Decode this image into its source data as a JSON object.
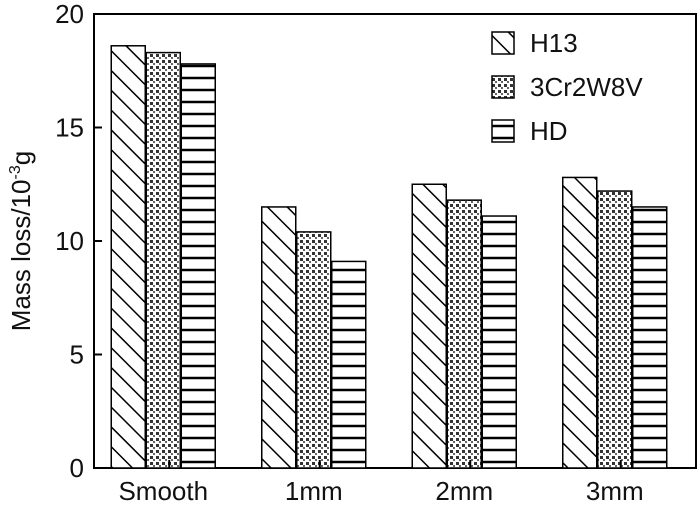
{
  "chart_data": {
    "type": "bar",
    "title": "",
    "xlabel": "",
    "ylabel": "Mass loss/10",
    "ylabel_sup": "-3",
    "ylabel_suffix": "g",
    "categories": [
      "Smooth",
      "1mm",
      "2mm",
      "3mm"
    ],
    "ylim": [
      0,
      20
    ],
    "yticks": [
      0,
      5,
      10,
      15,
      20
    ],
    "grid": false,
    "legend_position": "top-right",
    "series": [
      {
        "name": "H13",
        "pattern": "diagonal-hatch",
        "values": [
          18.6,
          11.5,
          12.5,
          12.8
        ]
      },
      {
        "name": "3Cr2W8V",
        "pattern": "dotted-fill",
        "values": [
          18.3,
          10.4,
          11.8,
          12.2
        ]
      },
      {
        "name": "HD",
        "pattern": "horizontal-lines",
        "values": [
          17.8,
          9.1,
          11.1,
          11.5
        ]
      }
    ]
  },
  "colors": {
    "stroke": "#000000",
    "background": "#ffffff"
  }
}
